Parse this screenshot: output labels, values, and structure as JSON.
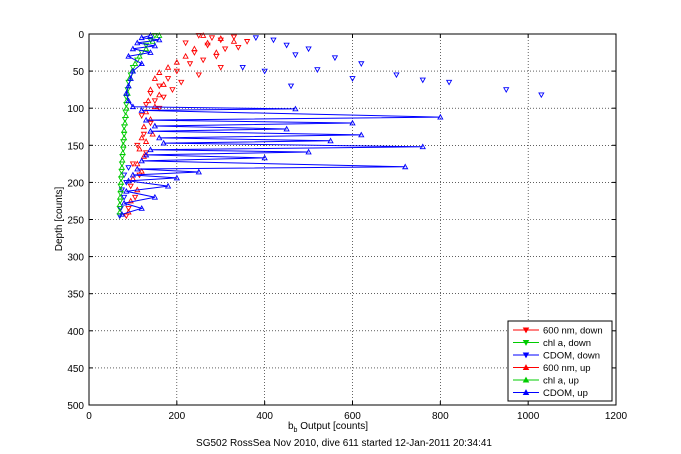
{
  "figure": {
    "caption": "SG502 RossSea Nov 2010, dive 611 started 12-Jan-2011 20:34:41"
  },
  "chart_data": {
    "type": "scatter",
    "title": "",
    "xlabel_main": "b",
    "xlabel_sub": "b",
    "xlabel_rest": " Output [counts]",
    "ylabel": "Depth [counts]",
    "xlim": [
      0,
      1200
    ],
    "ylim": [
      0,
      500
    ],
    "y_reversed": true,
    "grid": true,
    "legend_position": "bottom-right",
    "x_ticks": [
      0,
      200,
      400,
      600,
      800,
      1000,
      1200
    ],
    "y_ticks": [
      0,
      50,
      100,
      150,
      200,
      250,
      300,
      350,
      400,
      450,
      500
    ],
    "series": [
      {
        "name": "600 nm, down",
        "color": "#ff0000",
        "marker": "triangle-down",
        "connected": false,
        "points": [
          [
            250,
            2
          ],
          [
            280,
            5
          ],
          [
            300,
            8
          ],
          [
            330,
            4
          ],
          [
            360,
            10
          ],
          [
            270,
            15
          ],
          [
            310,
            20
          ],
          [
            240,
            25
          ],
          [
            290,
            30
          ],
          [
            220,
            12
          ],
          [
            340,
            18
          ],
          [
            260,
            35
          ],
          [
            230,
            40
          ],
          [
            300,
            45
          ],
          [
            200,
            50
          ],
          [
            250,
            55
          ],
          [
            180,
            60
          ],
          [
            210,
            65
          ],
          [
            160,
            70
          ],
          [
            190,
            75
          ],
          [
            140,
            80
          ],
          [
            170,
            85
          ],
          [
            150,
            90
          ],
          [
            130,
            95
          ],
          [
            160,
            100
          ],
          [
            120,
            110
          ],
          [
            140,
            120
          ],
          [
            125,
            135
          ],
          [
            110,
            150
          ],
          [
            130,
            160
          ],
          [
            100,
            175
          ],
          [
            115,
            190
          ],
          [
            95,
            205
          ],
          [
            105,
            220
          ],
          [
            90,
            235
          ],
          [
            85,
            245
          ]
        ]
      },
      {
        "name": "chl a, down",
        "color": "#00cc00",
        "marker": "triangle-down",
        "connected": false,
        "points": [
          [
            150,
            2
          ],
          [
            140,
            8
          ],
          [
            130,
            15
          ],
          [
            120,
            25
          ],
          [
            110,
            35
          ],
          [
            100,
            45
          ],
          [
            95,
            55
          ],
          [
            90,
            65
          ],
          [
            88,
            75
          ],
          [
            85,
            85
          ],
          [
            85,
            95
          ],
          [
            83,
            105
          ],
          [
            82,
            115
          ],
          [
            80,
            125
          ],
          [
            80,
            135
          ],
          [
            78,
            145
          ],
          [
            78,
            155
          ],
          [
            76,
            165
          ],
          [
            75,
            175
          ],
          [
            74,
            185
          ],
          [
            73,
            195
          ],
          [
            72,
            205
          ],
          [
            72,
            215
          ],
          [
            71,
            225
          ],
          [
            70,
            235
          ],
          [
            70,
            245
          ]
        ]
      },
      {
        "name": "CDOM, down",
        "color": "#0000ff",
        "marker": "triangle-down",
        "connected": false,
        "points": [
          [
            380,
            5
          ],
          [
            420,
            8
          ],
          [
            450,
            15
          ],
          [
            500,
            20
          ],
          [
            470,
            28
          ],
          [
            560,
            32
          ],
          [
            620,
            40
          ],
          [
            700,
            55
          ],
          [
            760,
            62
          ],
          [
            820,
            65
          ],
          [
            950,
            75
          ],
          [
            1030,
            82
          ],
          [
            400,
            50
          ],
          [
            350,
            45
          ],
          [
            520,
            48
          ],
          [
            600,
            60
          ],
          [
            460,
            70
          ],
          [
            90,
            180
          ],
          [
            80,
            190
          ],
          [
            85,
            200
          ],
          [
            75,
            210
          ],
          [
            80,
            220
          ],
          [
            72,
            235
          ],
          [
            70,
            245
          ]
        ]
      },
      {
        "name": "600 nm, up",
        "color": "#ff0000",
        "marker": "triangle-up",
        "connected": false,
        "points": [
          [
            260,
            2
          ],
          [
            300,
            6
          ],
          [
            330,
            10
          ],
          [
            270,
            12
          ],
          [
            240,
            20
          ],
          [
            290,
            25
          ],
          [
            220,
            30
          ],
          [
            200,
            38
          ],
          [
            180,
            45
          ],
          [
            160,
            52
          ],
          [
            150,
            60
          ],
          [
            170,
            68
          ],
          [
            140,
            75
          ],
          [
            160,
            82
          ],
          [
            135,
            90
          ],
          [
            150,
            98
          ],
          [
            130,
            105
          ],
          [
            140,
            115
          ],
          [
            125,
            125
          ],
          [
            145,
            135
          ],
          [
            120,
            140
          ],
          [
            130,
            145
          ],
          [
            115,
            155
          ],
          [
            125,
            165
          ],
          [
            110,
            175
          ],
          [
            120,
            185
          ],
          [
            100,
            195
          ],
          [
            110,
            210
          ],
          [
            95,
            225
          ],
          [
            90,
            240
          ]
        ]
      },
      {
        "name": "chl a, up",
        "color": "#00cc00",
        "marker": "triangle-up",
        "connected": false,
        "points": [
          [
            160,
            2
          ],
          [
            145,
            10
          ],
          [
            130,
            20
          ],
          [
            115,
            30
          ],
          [
            105,
            40
          ],
          [
            98,
            50
          ],
          [
            92,
            60
          ],
          [
            90,
            70
          ],
          [
            88,
            80
          ],
          [
            86,
            90
          ],
          [
            85,
            100
          ],
          [
            84,
            110
          ],
          [
            82,
            120
          ],
          [
            80,
            130
          ],
          [
            80,
            140
          ],
          [
            78,
            150
          ],
          [
            77,
            160
          ],
          [
            76,
            170
          ],
          [
            75,
            180
          ],
          [
            74,
            190
          ],
          [
            73,
            200
          ],
          [
            72,
            210
          ],
          [
            71,
            220
          ],
          [
            70,
            230
          ],
          [
            70,
            240
          ]
        ]
      },
      {
        "name": "CDOM, up",
        "color": "#0000ff",
        "marker": "triangle-up",
        "connected": true,
        "points": [
          [
            140,
            2
          ],
          [
            120,
            5
          ],
          [
            160,
            8
          ],
          [
            110,
            12
          ],
          [
            150,
            16
          ],
          [
            100,
            20
          ],
          [
            140,
            25
          ],
          [
            90,
            30
          ],
          [
            120,
            40
          ],
          [
            100,
            50
          ],
          [
            95,
            60
          ],
          [
            90,
            70
          ],
          [
            85,
            80
          ],
          [
            90,
            90
          ],
          [
            100,
            98
          ],
          [
            470,
            101
          ],
          [
            120,
            103
          ],
          [
            800,
            112
          ],
          [
            130,
            116
          ],
          [
            600,
            120
          ],
          [
            150,
            124
          ],
          [
            450,
            128
          ],
          [
            140,
            131
          ],
          [
            620,
            136
          ],
          [
            160,
            140
          ],
          [
            550,
            144
          ],
          [
            170,
            147
          ],
          [
            760,
            152
          ],
          [
            140,
            156
          ],
          [
            500,
            159
          ],
          [
            130,
            163
          ],
          [
            400,
            167
          ],
          [
            120,
            171
          ],
          [
            720,
            179
          ],
          [
            110,
            182
          ],
          [
            250,
            186
          ],
          [
            100,
            190
          ],
          [
            200,
            194
          ],
          [
            90,
            198
          ],
          [
            180,
            205
          ],
          [
            85,
            212
          ],
          [
            150,
            220
          ],
          [
            80,
            228
          ],
          [
            120,
            235
          ],
          [
            75,
            243
          ]
        ]
      }
    ]
  }
}
